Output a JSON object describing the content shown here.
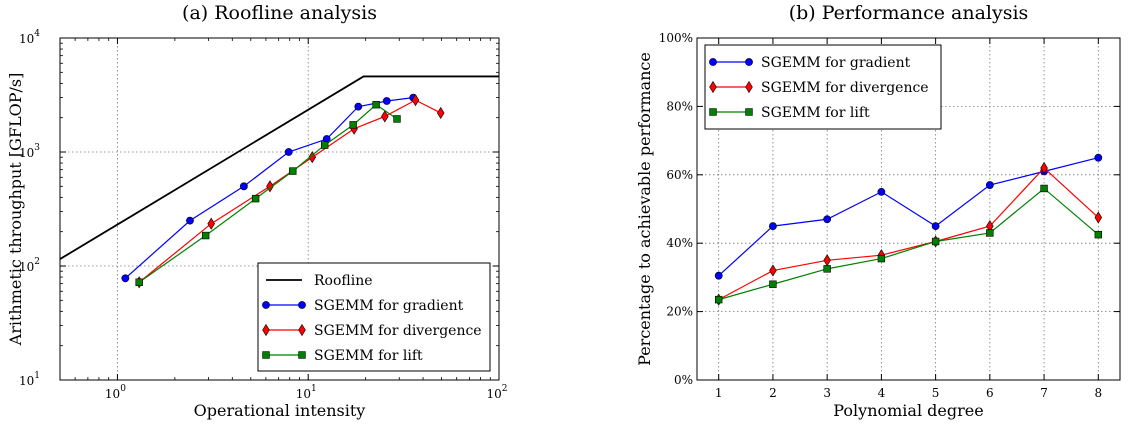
{
  "chart_data": [
    {
      "type": "line",
      "title": "(a) Roofline analysis",
      "xlabel": "Operational intensity",
      "ylabel": "Arithmetic throughput [GFLOP/s]",
      "xscale": "log",
      "yscale": "log",
      "xlim": [
        0.5,
        100
      ],
      "ylim": [
        10,
        10000
      ],
      "xticks": [
        1,
        10,
        100
      ],
      "yticks": [
        10,
        100,
        1000,
        10000
      ],
      "xtick_labels": [
        [
          "10",
          "0"
        ],
        [
          "10",
          "1"
        ],
        [
          "10",
          "2"
        ]
      ],
      "ytick_labels": [
        [
          "10",
          "1"
        ],
        [
          "10",
          "2"
        ],
        [
          "10",
          "3"
        ],
        [
          "10",
          "4"
        ]
      ],
      "grid": true,
      "legend_position": "bottom-right",
      "series": [
        {
          "name": "Roofline",
          "color": "#000000",
          "marker": "none",
          "x": [
            0.5,
            19.5,
            100
          ],
          "y": [
            115,
            4600,
            4600
          ]
        },
        {
          "name": "SGEMM for gradient",
          "color": "#0000ff",
          "marker": "circle",
          "x": [
            1.1,
            2.4,
            4.6,
            7.9,
            12.5,
            18.3,
            25.8,
            35.5
          ],
          "y": [
            78,
            250,
            500,
            1000,
            1300,
            2500,
            2800,
            3000
          ]
        },
        {
          "name": "SGEMM for divergence",
          "color": "#ff0000",
          "marker": "diamond",
          "x": [
            1.3,
            3.1,
            6.3,
            10.5,
            17.4,
            25.2,
            36.5,
            49.5
          ],
          "y": [
            72,
            235,
            500,
            900,
            1600,
            2050,
            2850,
            2200
          ]
        },
        {
          "name": "SGEMM for lift",
          "color": "#008000",
          "marker": "square",
          "x": [
            1.3,
            2.9,
            5.3,
            8.3,
            12.2,
            17.2,
            22.7,
            29.2
          ],
          "y": [
            72,
            185,
            390,
            680,
            1150,
            1730,
            2600,
            1950
          ]
        }
      ]
    },
    {
      "type": "line",
      "title": "(b) Performance analysis",
      "xlabel": "Polynomial degree",
      "ylabel": "Percentage to achievable performance",
      "xlim": [
        0.6,
        8.4
      ],
      "ylim": [
        0,
        100
      ],
      "xticks": [
        1,
        2,
        3,
        4,
        5,
        6,
        7,
        8
      ],
      "xtick_labels": [
        "1",
        "2",
        "3",
        "4",
        "5",
        "6",
        "7",
        "8"
      ],
      "yticks": [
        0,
        20,
        40,
        60,
        80,
        100
      ],
      "ytick_labels": [
        "0%",
        "20%",
        "40%",
        "60%",
        "80%",
        "100%"
      ],
      "grid": true,
      "legend_position": "top-left",
      "categories": [
        1,
        2,
        3,
        4,
        5,
        6,
        7,
        8
      ],
      "series": [
        {
          "name": "SGEMM for gradient",
          "color": "#0000ff",
          "marker": "circle",
          "values": [
            30.5,
            45,
            47,
            55,
            45,
            57,
            61,
            65
          ]
        },
        {
          "name": "SGEMM for divergence",
          "color": "#ff0000",
          "marker": "diamond",
          "values": [
            23.5,
            32,
            35,
            36.5,
            40.5,
            45,
            62,
            47.5
          ]
        },
        {
          "name": "SGEMM for lift",
          "color": "#008000",
          "marker": "square",
          "values": [
            23.5,
            28,
            32.5,
            35.5,
            40.5,
            43,
            56,
            42.5
          ]
        }
      ]
    }
  ]
}
